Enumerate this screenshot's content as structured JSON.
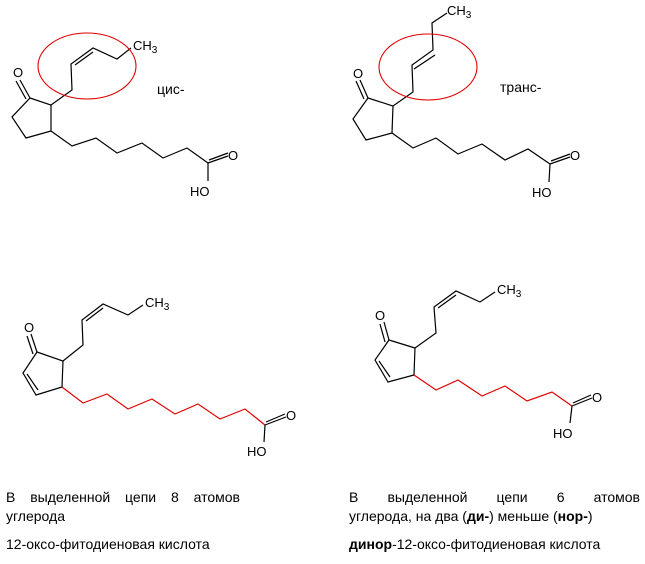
{
  "molecules": [
    {
      "label": "цис-",
      "atoms": {
        "oxo": "O",
        "methyl": "CH",
        "methyl_sub": "3",
        "acid_o": "O",
        "acid_oh": "HO"
      }
    },
    {
      "label": "транс-",
      "atoms": {
        "oxo": "O",
        "methyl": "CH",
        "methyl_sub": "3",
        "acid_o": "O",
        "acid_oh": "HO"
      }
    },
    {
      "atoms": {
        "oxo": "O",
        "methyl": "CH",
        "methyl_sub": "3",
        "acid_o": "O",
        "acid_oh": "HO"
      }
    },
    {
      "atoms": {
        "oxo": "O",
        "methyl": "CH",
        "methyl_sub": "3",
        "acid_o": "O",
        "acid_oh": "HO"
      }
    }
  ],
  "left_caption": {
    "line1_words": [
      "В",
      "выделенной",
      "цепи",
      "8",
      "атомов"
    ],
    "line2": "углерода",
    "name": "12-оксо-фитодиеновая кислота"
  },
  "right_caption": {
    "line1_words": [
      "В",
      "выделенной",
      "цепи",
      "6",
      "атомов"
    ],
    "line2_a": "углерода, на два (",
    "line2_bold1": "ди-",
    "line2_b": ") меньше (",
    "line2_bold2": "нор-",
    "line2_c": ")",
    "name_bold": "динор",
    "name_rest": "-12-оксо-фитодиеновая кислота"
  },
  "colors": {
    "highlight": "#e00000",
    "bond": "#000000"
  }
}
